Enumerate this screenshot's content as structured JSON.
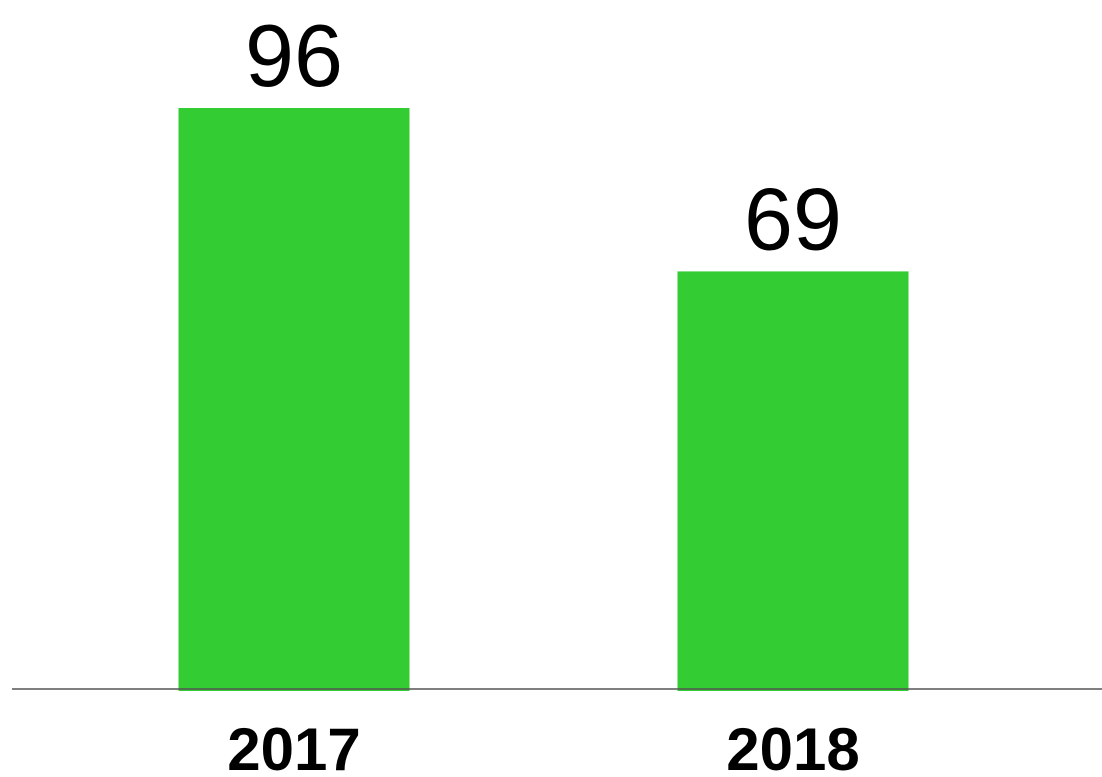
{
  "chart_data": {
    "type": "bar",
    "categories": [
      "2017",
      "2018"
    ],
    "values": [
      96,
      69
    ],
    "value_labels": [
      "96",
      "69"
    ],
    "title": "",
    "xlabel": "",
    "ylabel": "",
    "ylim": [
      0,
      96
    ],
    "grid": false,
    "legend": "none",
    "bar_color": "#33cc33",
    "axis_color": "#555555"
  }
}
